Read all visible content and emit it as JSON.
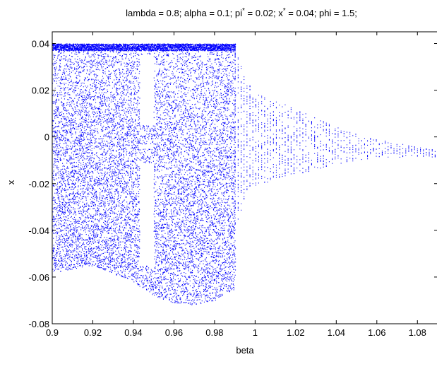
{
  "chart_data": {
    "type": "scatter",
    "title_parts": {
      "t1": "lambda = 0.8; alpha = 0.1; pi",
      "s1": "*",
      "t2": " = 0.02; x",
      "s2": "*",
      "t3": " = 0.04; phi = 1.5;"
    },
    "xlabel": "beta",
    "ylabel": "x",
    "xlim": [
      0.9,
      1.09
    ],
    "ylim": [
      -0.08,
      0.045
    ],
    "xticks": [
      0.9,
      0.92,
      0.94,
      0.96,
      0.98,
      1,
      1.02,
      1.04,
      1.06,
      1.08
    ],
    "xtick_labels": [
      "0.9",
      "0.92",
      "0.94",
      "0.96",
      "0.98",
      "1",
      "1.02",
      "1.04",
      "1.06",
      "1.08"
    ],
    "yticks": [
      -0.08,
      -0.06,
      -0.04,
      -0.02,
      0,
      0.02,
      0.04
    ],
    "ytick_labels": [
      "-0.08",
      "-0.06",
      "-0.04",
      "-0.02",
      "0",
      "0.02",
      "0.04"
    ],
    "marker_color": "#0000ff",
    "series": [
      {
        "region": "chaotic",
        "beta_range": [
          0.9,
          0.99
        ],
        "upper_x": 0.04,
        "lower_envelope": [
          [
            0.9,
            -0.058
          ],
          [
            0.92,
            -0.055
          ],
          [
            0.94,
            -0.062
          ],
          [
            0.95,
            -0.068
          ],
          [
            0.96,
            -0.071
          ],
          [
            0.97,
            -0.072
          ],
          [
            0.98,
            -0.07
          ],
          [
            0.99,
            -0.065
          ]
        ]
      },
      {
        "region": "converging",
        "beta_range": [
          0.99,
          1.09
        ],
        "amplitude_envelope": [
          [
            0.99,
            0.04
          ],
          [
            0.995,
            0.025
          ],
          [
            1.0,
            0.02
          ],
          [
            1.02,
            0.014
          ],
          [
            1.04,
            0.008
          ],
          [
            1.06,
            0.004
          ],
          [
            1.08,
            0.002
          ],
          [
            1.09,
            0.0015
          ]
        ],
        "center_x": [
          [
            0.99,
            0.0
          ],
          [
            1.09,
            -0.007
          ]
        ]
      }
    ]
  }
}
